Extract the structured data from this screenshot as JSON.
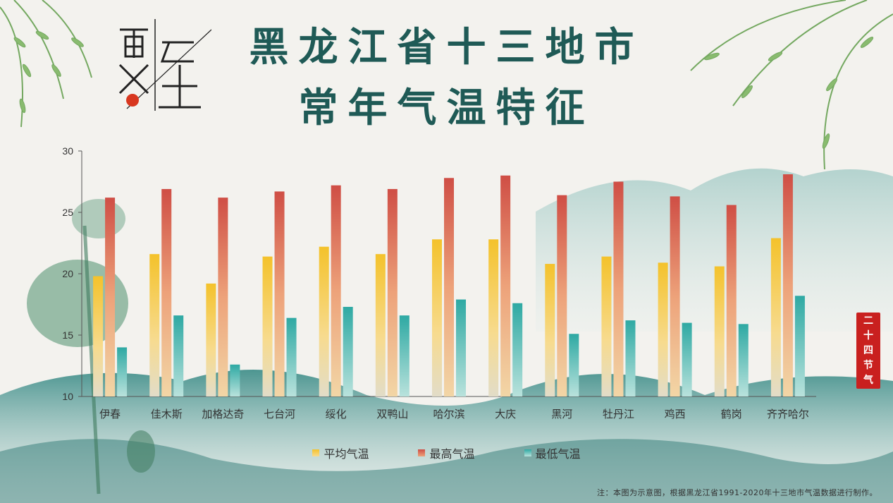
{
  "title": {
    "line1": "黑龙江省十三地市",
    "line2": "常年气温特征"
  },
  "logo": {
    "text": "夏至"
  },
  "seal": {
    "chars": [
      "二",
      "十",
      "四",
      "节",
      "气"
    ]
  },
  "note": "注：本图为示意图，根据黑龙江省1991-2020年十三地市气温数据进行制作。",
  "colors": {
    "title": "#1f5a56",
    "avg": "#f2c12e",
    "max": "#d25a4a",
    "min": "#39b1aa",
    "seal": "#c9201f"
  },
  "chart_data": {
    "type": "bar",
    "categories": [
      "伊春",
      "佳木斯",
      "加格达奇",
      "七台河",
      "绥化",
      "双鸭山",
      "哈尔滨",
      "大庆",
      "黑河",
      "牡丹江",
      "鸡西",
      "鹤岗",
      "齐齐哈尔"
    ],
    "series": [
      {
        "name": "平均气温",
        "values": [
          19.8,
          21.6,
          19.2,
          21.4,
          22.2,
          21.6,
          22.8,
          22.8,
          20.8,
          21.4,
          20.9,
          20.6,
          22.9
        ]
      },
      {
        "name": "最高气温",
        "values": [
          26.2,
          26.9,
          26.2,
          26.7,
          27.2,
          26.9,
          27.8,
          28.0,
          26.4,
          27.5,
          26.3,
          25.6,
          28.1
        ]
      },
      {
        "name": "最低气温",
        "values": [
          14.0,
          16.6,
          12.6,
          16.4,
          17.3,
          16.6,
          17.9,
          17.6,
          15.1,
          16.2,
          16.0,
          15.9,
          18.2
        ]
      }
    ],
    "ylim": [
      10,
      30
    ],
    "yticks": [
      10,
      15,
      20,
      25,
      30
    ],
    "legend_position": "bottom"
  }
}
